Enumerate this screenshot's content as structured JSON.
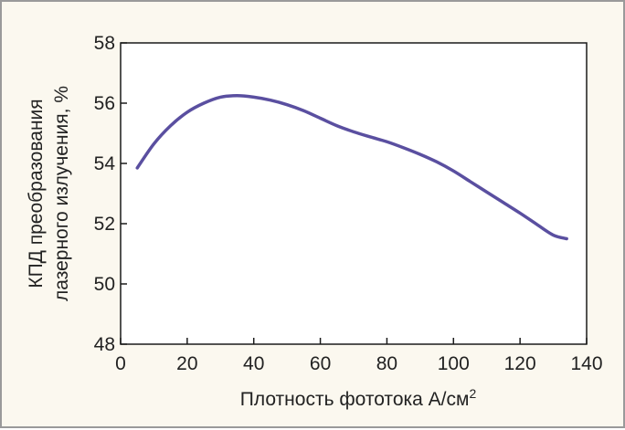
{
  "chart_data": {
    "type": "line",
    "title": "",
    "xlabel": "Плотность фототока А/см",
    "xlabel_sup": "2",
    "ylabel_line1": "КПД преобразования",
    "ylabel_line2": "лазерного излучения, %",
    "xlim": [
      0,
      140
    ],
    "ylim": [
      48,
      58
    ],
    "xticks": [
      0,
      20,
      40,
      60,
      80,
      100,
      120,
      140
    ],
    "yticks": [
      48,
      50,
      52,
      54,
      56,
      58
    ],
    "grid": false,
    "series": [
      {
        "color": "#5a4fa0",
        "x": [
          5,
          10,
          15,
          20,
          25,
          30,
          35,
          40,
          45,
          50,
          55,
          60,
          65,
          70,
          75,
          80,
          85,
          90,
          95,
          100,
          105,
          110,
          115,
          120,
          125,
          130,
          134
        ],
        "y": [
          53.85,
          54.65,
          55.25,
          55.7,
          56.0,
          56.2,
          56.25,
          56.2,
          56.1,
          55.95,
          55.75,
          55.5,
          55.25,
          55.05,
          54.88,
          54.72,
          54.52,
          54.3,
          54.05,
          53.75,
          53.4,
          53.05,
          52.7,
          52.35,
          51.98,
          51.62,
          51.5
        ]
      }
    ]
  },
  "colors": {
    "background": "#fbf8ef",
    "frame_border": "#9a9a9a",
    "axes": "#1a1a1a",
    "line": "#5a4fa0"
  }
}
